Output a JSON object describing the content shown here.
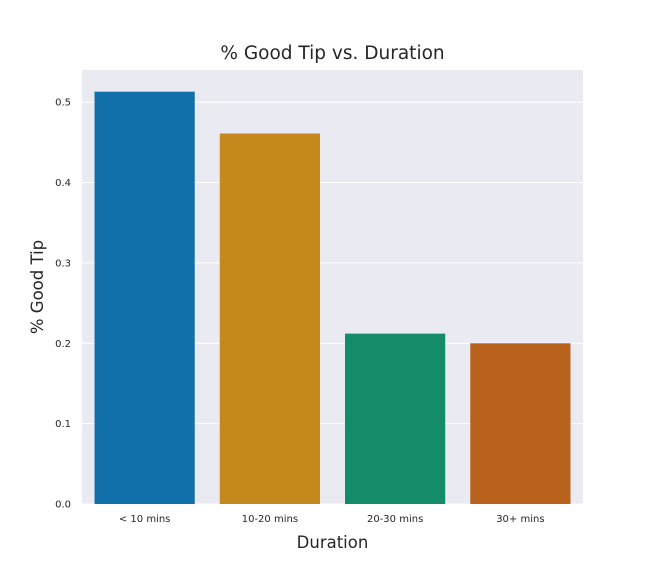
{
  "chart_data": {
    "type": "bar",
    "title": "% Good Tip vs. Duration",
    "xlabel": "Duration",
    "ylabel": "% Good Tip",
    "categories": [
      "< 10 mins",
      "10-20 mins",
      "20-30 mins",
      "30+ mins"
    ],
    "values": [
      0.513,
      0.461,
      0.212,
      0.2
    ],
    "colors": [
      "#1170aa",
      "#c4881c",
      "#148c69",
      "#b9621b"
    ],
    "ylim": [
      0,
      0.54
    ],
    "yticks": [
      0.0,
      0.1,
      0.2,
      0.3,
      0.4,
      0.5
    ],
    "ytick_labels": [
      "0.0",
      "0.1",
      "0.2",
      "0.3",
      "0.4",
      "0.5"
    ],
    "grid": true,
    "background": "#eaeaf2",
    "grid_color": "#ffffff"
  }
}
